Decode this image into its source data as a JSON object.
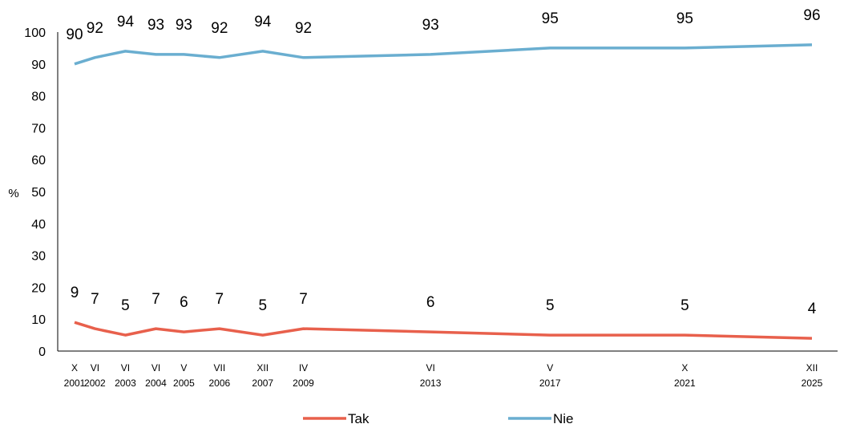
{
  "chart_data": {
    "type": "line",
    "title": "",
    "xlabel": "",
    "ylabel": "%",
    "ylim": [
      0,
      100
    ],
    "yticks": [
      0,
      10,
      20,
      30,
      40,
      50,
      60,
      70,
      80,
      90,
      100
    ],
    "grid": false,
    "legend": "bottom",
    "categories": [
      {
        "label": "X",
        "year": "2001",
        "date": "2001-10"
      },
      {
        "label": "VI",
        "year": "2002",
        "date": "2002-06"
      },
      {
        "label": "VI",
        "year": "2003",
        "date": "2003-06"
      },
      {
        "label": "VI",
        "year": "2004",
        "date": "2004-06"
      },
      {
        "label": "V",
        "year": "2005",
        "date": "2005-05"
      },
      {
        "label": "VII",
        "year": "2006",
        "date": "2006-07"
      },
      {
        "label": "XII",
        "year": "2007",
        "date": "2007-12"
      },
      {
        "label": "IV",
        "year": "2009",
        "date": "2009-04"
      },
      {
        "label": "VI",
        "year": "2013",
        "date": "2013-06"
      },
      {
        "label": "V",
        "year": "2017",
        "date": "2017-05"
      },
      {
        "label": "X",
        "year": "2021",
        "date": "2021-10"
      },
      {
        "label": "XII",
        "year": "2025",
        "date": "2025-12"
      }
    ],
    "series": [
      {
        "name": "Tak",
        "color": "#e8604c",
        "values": [
          9,
          7,
          5,
          7,
          6,
          7,
          5,
          7,
          6,
          5,
          5,
          4
        ]
      },
      {
        "name": "Nie",
        "color": "#6aaed0",
        "values": [
          90,
          92,
          94,
          93,
          93,
          92,
          94,
          92,
          93,
          95,
          95,
          96
        ]
      }
    ]
  }
}
